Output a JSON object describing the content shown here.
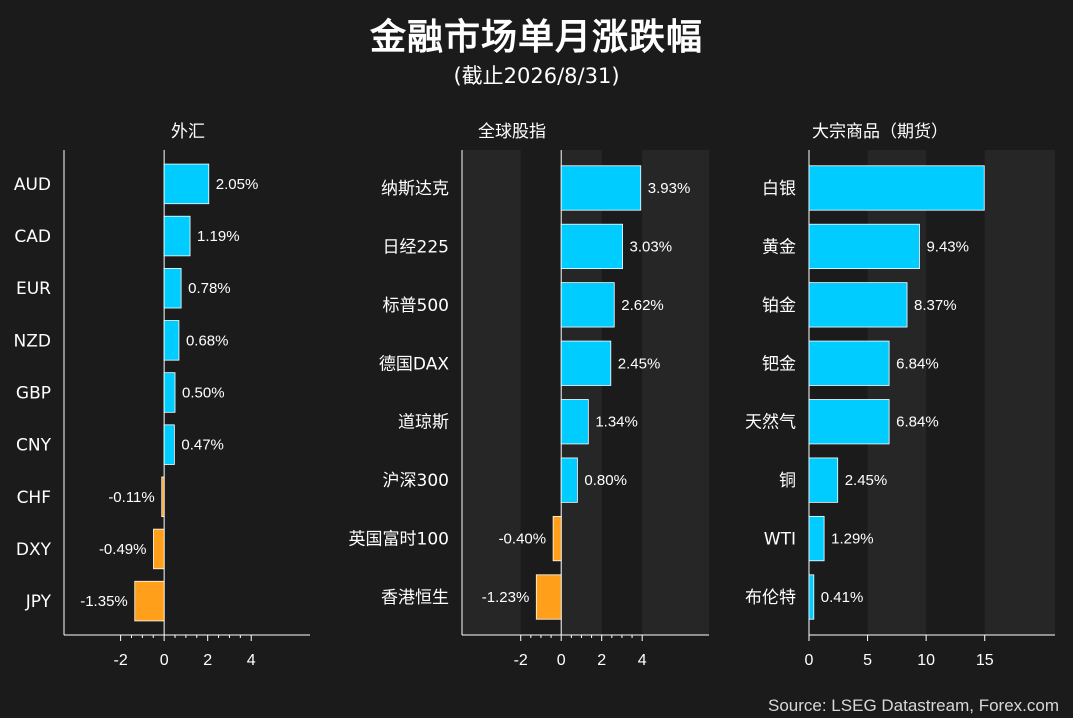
{
  "header": {
    "title": "金融市场单月涨跌幅",
    "subtitle": "(截止2026/8/31)"
  },
  "source": "Source: LSEG Datastream, Forex.com",
  "colors": {
    "positive": "#00ccff",
    "negative": "#ff9f1a",
    "background": "#1b1b1b",
    "stripe": "#262626"
  },
  "chart_data": [
    {
      "type": "bar",
      "orientation": "horizontal",
      "title": "外汇",
      "categories": [
        "AUD",
        "CAD",
        "EUR",
        "NZD",
        "GBP",
        "CNY",
        "CHF",
        "DXY",
        "JPY"
      ],
      "values": [
        2.05,
        1.19,
        0.78,
        0.68,
        0.5,
        0.47,
        -0.11,
        -0.49,
        -1.35
      ],
      "value_labels": [
        "2.05%",
        "1.19%",
        "0.78%",
        "0.68%",
        "0.50%",
        "0.47%",
        "-0.11%",
        "-0.49%",
        "-1.35%"
      ],
      "xticks": [
        -2,
        0,
        2,
        4
      ],
      "xlim": [
        -4.6,
        6.7
      ],
      "minor_ticks": true,
      "stripes": false
    },
    {
      "type": "bar",
      "orientation": "horizontal",
      "title": "全球股指",
      "categories": [
        "纳斯达克",
        "日经225",
        "标普500",
        "德国DAX",
        "道琼斯",
        "沪深300",
        "英国富时100",
        "香港恒生"
      ],
      "values": [
        3.93,
        3.03,
        2.62,
        2.45,
        1.34,
        0.8,
        -0.4,
        -1.23
      ],
      "value_labels": [
        "3.93%",
        "3.03%",
        "2.62%",
        "2.45%",
        "1.34%",
        "0.80%",
        "-0.40%",
        "-1.23%"
      ],
      "xticks": [
        -2,
        0,
        2,
        4
      ],
      "xlim": [
        -4.9,
        7.3
      ],
      "minor_ticks": true,
      "stripes": true
    },
    {
      "type": "bar",
      "orientation": "horizontal",
      "title": "大宗商品（期货）",
      "categories": [
        "白银",
        "黄金",
        "铂金",
        "钯金",
        "天然气",
        "铜",
        "WTI",
        "布伦特"
      ],
      "values": [
        14.96,
        9.43,
        8.37,
        6.84,
        6.84,
        2.45,
        1.29,
        0.41
      ],
      "value_labels": [
        "",
        "9.43%",
        "8.37%",
        "6.84%",
        "6.84%",
        "2.45%",
        "1.29%",
        "0.41%"
      ],
      "xticks": [
        0,
        5,
        10,
        15
      ],
      "xlim": [
        0,
        21
      ],
      "minor_ticks": false,
      "stripes": true
    }
  ]
}
